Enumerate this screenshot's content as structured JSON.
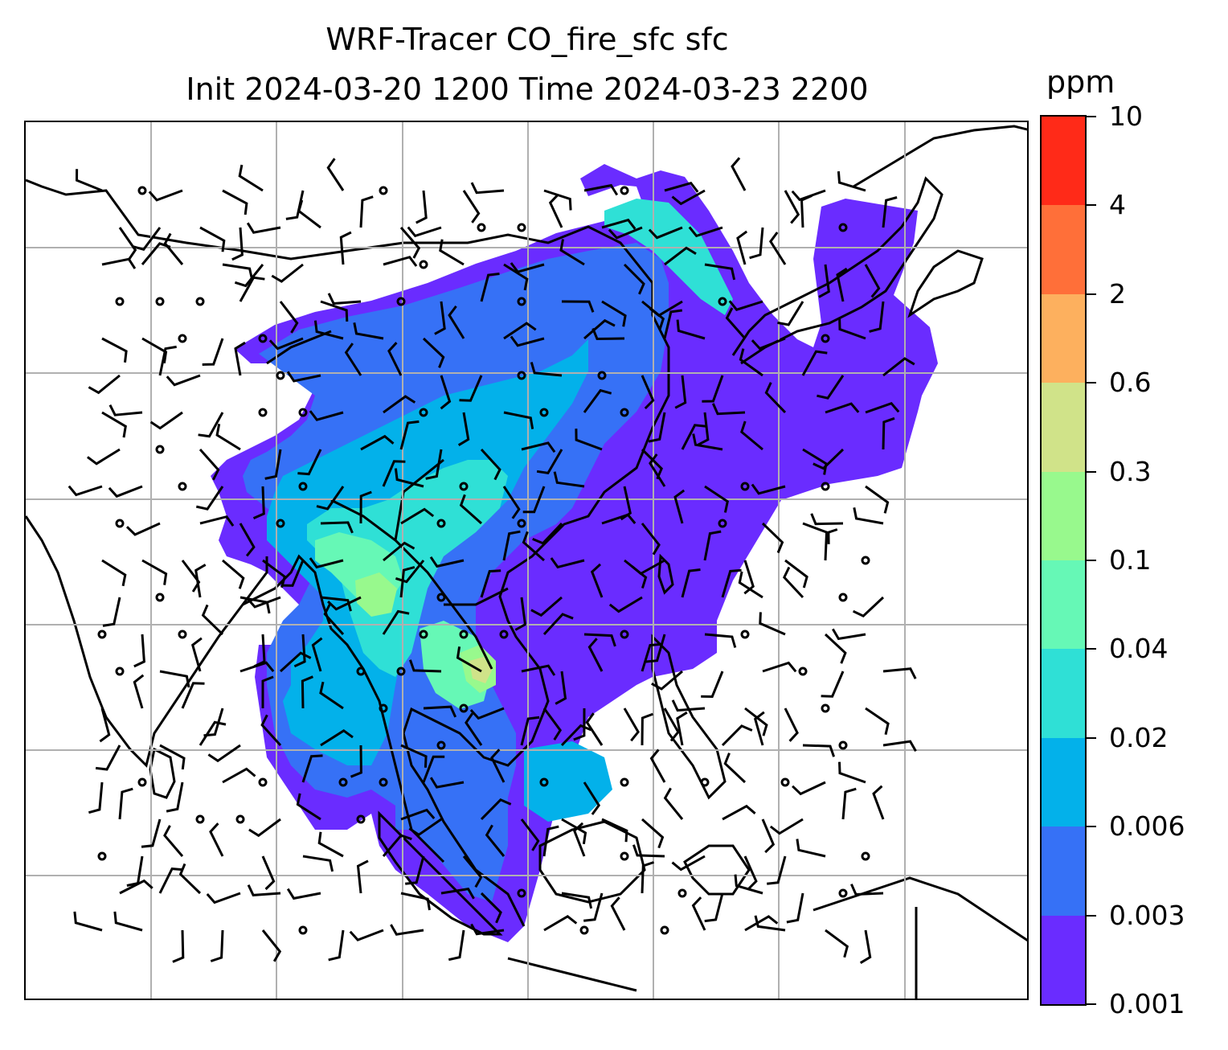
{
  "title": {
    "line1": "WRF-Tracer CO_fire_sfc sfc",
    "line2": "Init 2024-03-20 1200 Time 2024-03-23 2200"
  },
  "colorbar": {
    "units": "ppm",
    "levels": [
      "0.001",
      "0.003",
      "0.006",
      "0.02",
      "0.04",
      "0.1",
      "0.3",
      "0.6",
      "2",
      "4",
      "10"
    ],
    "colors": [
      "#6a2cff",
      "#3671f6",
      "#03b1ea",
      "#2fe0d6",
      "#66f8b6",
      "#98f98d",
      "#d0e389",
      "#fdb05e",
      "#ff6f39",
      "#ff2a18"
    ]
  },
  "map": {
    "gridlines": true,
    "fill_colors": {
      "very_low": "#6a2cff",
      "low": "#3671f6",
      "moderate": "#03b1ea",
      "elevated": "#2fe0d6",
      "high": "#66f8b6",
      "hotspot": "#98f98d",
      "peak": "#d0e389"
    },
    "grid_color": "#b0b0b0",
    "coast_color": "#000000"
  }
}
